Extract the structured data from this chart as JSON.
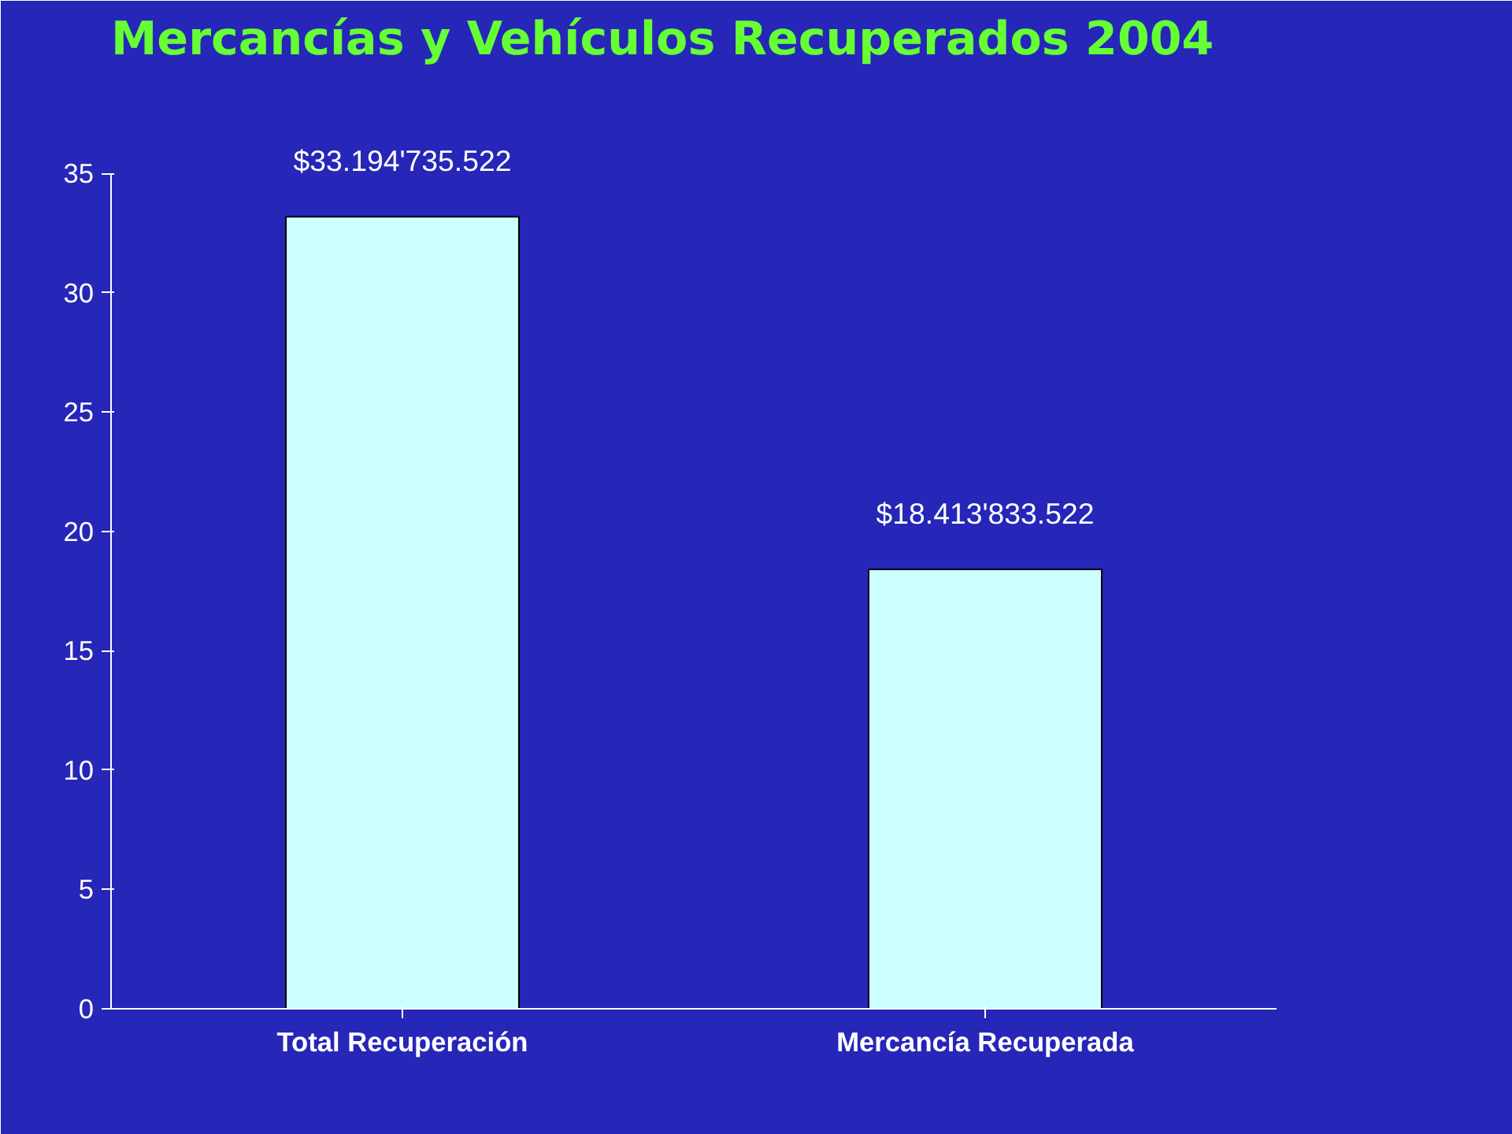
{
  "chart_data": {
    "type": "bar",
    "title": "Mercancías y Vehículos Recuperados 2004",
    "categories": [
      "Total Recuperación",
      "Mercancía Recuperada"
    ],
    "values": [
      33.19,
      18.41
    ],
    "value_labels": [
      "$33.194'735.522",
      "$18.413'833.522"
    ],
    "color": "#ccffff",
    "ylim": [
      0,
      35
    ],
    "yticks": [
      0,
      5,
      10,
      15,
      20,
      25,
      30,
      35
    ],
    "grid": false
  }
}
